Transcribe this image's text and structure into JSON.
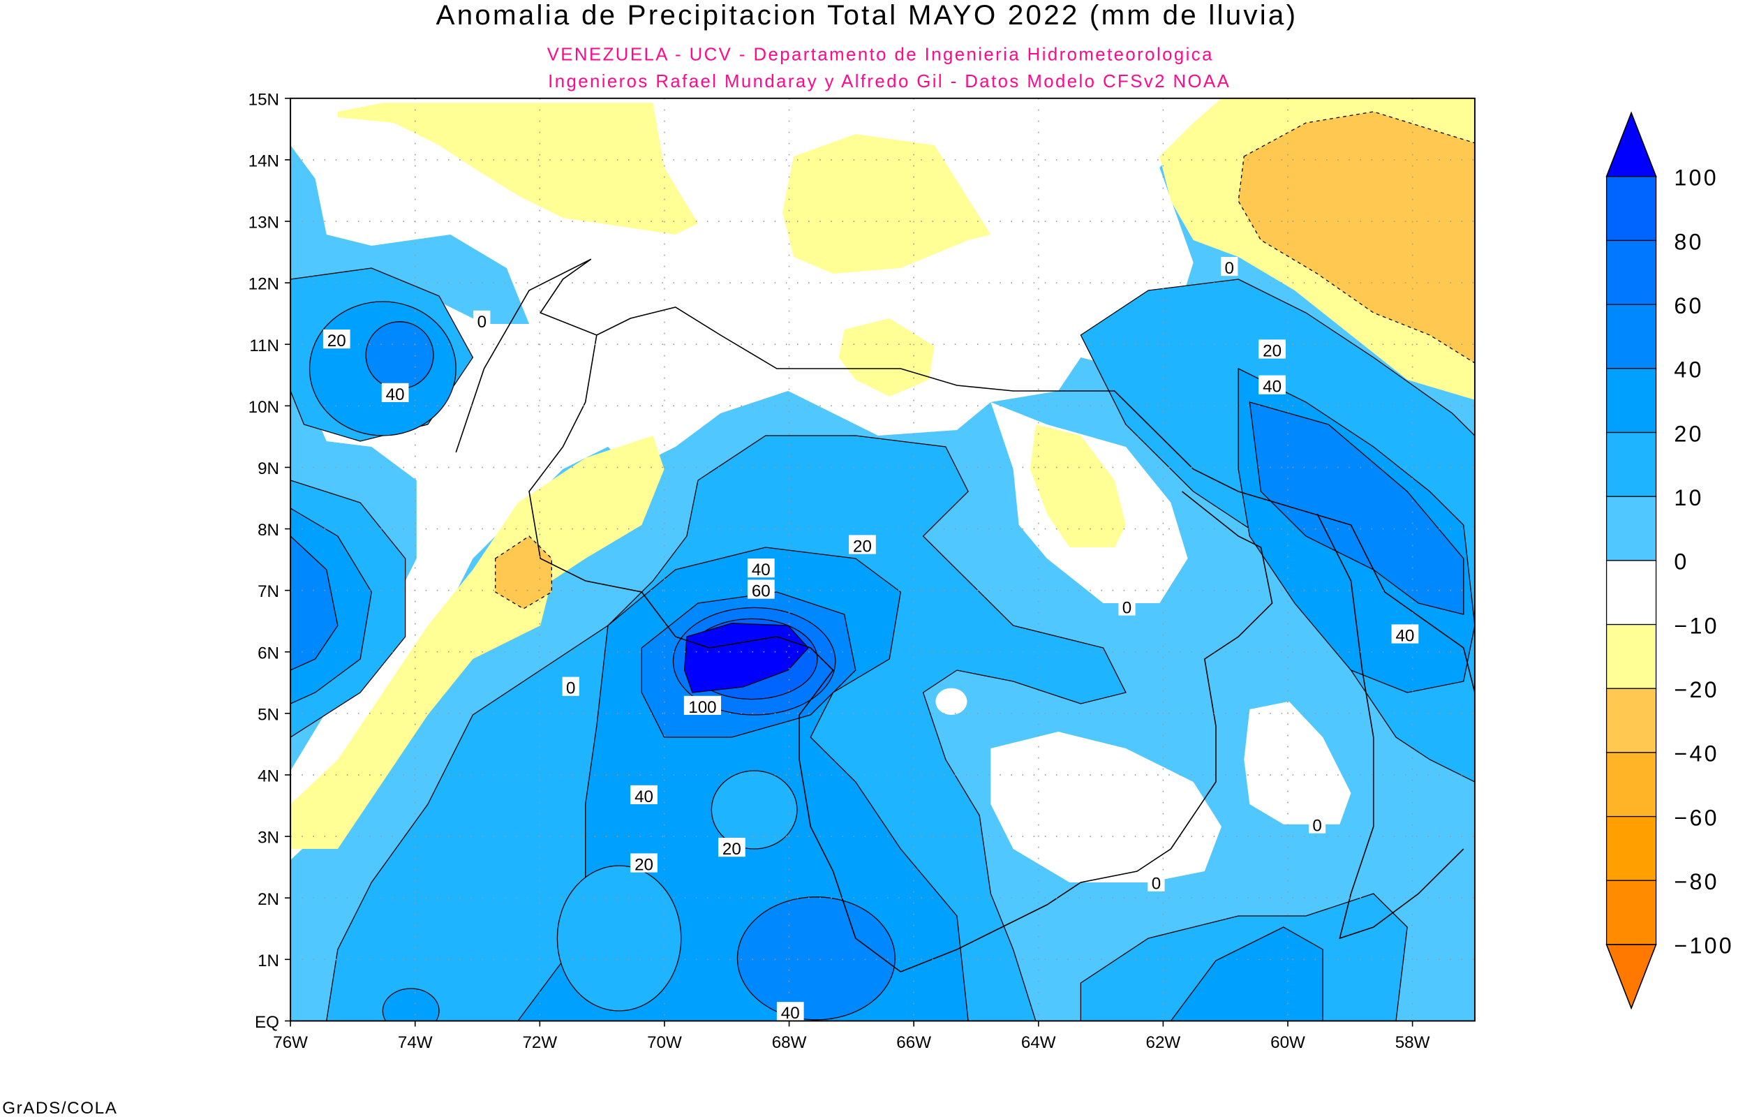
{
  "title": "Anomalia de Precipitacion Total MAYO 2022 (mm de lluvia)",
  "subtitle_1": "VENEZUELA - UCV - Departamento de Ingenieria Hidrometeorologica",
  "subtitle_2": "Ingenieros Rafael Mundaray y Alfredo Gil - Datos Modelo CFSv2 NOAA",
  "credit": "GrADS/COLA",
  "map": {
    "lon_range": [
      -76,
      -57
    ],
    "lat_range": [
      0,
      15
    ],
    "lon_ticks": [
      "76W",
      "74W",
      "72W",
      "70W",
      "68W",
      "66W",
      "64W",
      "62W",
      "60W",
      "58W"
    ],
    "lat_ticks": [
      "EQ",
      "1N",
      "2N",
      "3N",
      "4N",
      "5N",
      "6N",
      "7N",
      "8N",
      "9N",
      "10N",
      "11N",
      "12N",
      "13N",
      "14N",
      "15N"
    ],
    "contour_labels": [
      "0",
      "20",
      "40",
      "0",
      "20",
      "40",
      "20",
      "40",
      "60",
      "100",
      "0",
      "40",
      "20",
      "20",
      "40",
      "0",
      "40",
      "0",
      "0"
    ]
  },
  "colorbar": {
    "labels": [
      "100",
      "80",
      "60",
      "40",
      "20",
      "10",
      "0",
      "-10",
      "-20",
      "-40",
      "-60",
      "-80",
      "-100"
    ],
    "colors": [
      "#0000ff",
      "#0064ff",
      "#0078ff",
      "#0088ff",
      "#00a0ff",
      "#1eb4ff",
      "#50c8ff",
      "#ffffff",
      "#ffff96",
      "#ffc850",
      "#ffb428",
      "#ffa000",
      "#ff8c00",
      "#ff7800"
    ]
  }
}
